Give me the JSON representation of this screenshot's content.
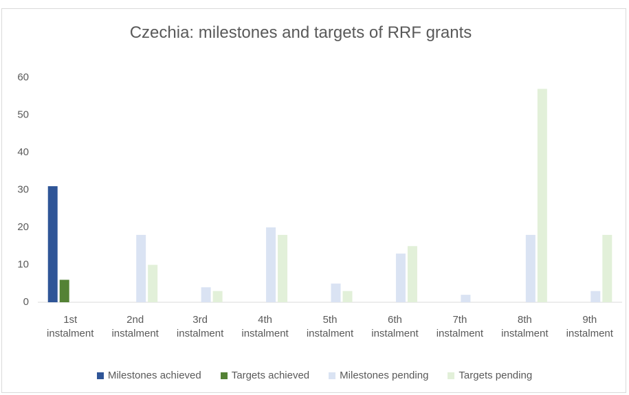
{
  "chart_data": {
    "type": "bar",
    "title": "Czechia: milestones and targets of RRF grants",
    "categories": [
      "1st instalment",
      "2nd instalment",
      "3rd instalment",
      "4th instalment",
      "5th instalment",
      "6th instalment",
      "7th instalment",
      "8th instalment",
      "9th instalment"
    ],
    "series": [
      {
        "name": "Milestones achieved",
        "color": "#2f5597",
        "values": [
          31,
          0,
          0,
          0,
          0,
          0,
          0,
          0,
          0
        ]
      },
      {
        "name": "Targets achieved",
        "color": "#548235",
        "values": [
          6,
          0,
          0,
          0,
          0,
          0,
          0,
          0,
          0
        ]
      },
      {
        "name": "Milestones pending",
        "color": "#dae3f3",
        "values": [
          0,
          18,
          4,
          20,
          5,
          13,
          2,
          18,
          3
        ]
      },
      {
        "name": "Targets pending",
        "color": "#e2f0d9",
        "values": [
          0,
          10,
          3,
          18,
          3,
          15,
          0,
          57,
          18
        ]
      }
    ],
    "ylim": [
      0,
      60
    ],
    "yticks": [
      0,
      10,
      20,
      30,
      40,
      50,
      60
    ],
    "grid": false,
    "legend": "bottom"
  }
}
